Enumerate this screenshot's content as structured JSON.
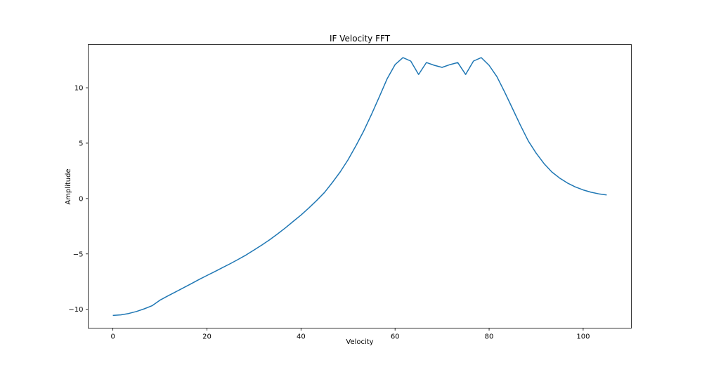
{
  "chart_data": {
    "type": "line",
    "title": "IF Velocity FFT",
    "xlabel": "Velocity",
    "ylabel": "Amplitude",
    "xlim": [
      -5.25,
      110.25
    ],
    "ylim": [
      -11.7,
      13.9
    ],
    "xticks": [
      0,
      20,
      40,
      60,
      80,
      100
    ],
    "xtick_labels": [
      "0",
      "20",
      "40",
      "60",
      "80",
      "100"
    ],
    "yticks": [
      -10,
      -5,
      0,
      5,
      10
    ],
    "ytick_labels": [
      "−10",
      "−5",
      "0",
      "5",
      "10"
    ],
    "grid": false,
    "line_color": "#1f77b4",
    "series": [
      {
        "x": [
          0,
          1.67,
          3.33,
          5,
          6.67,
          8.33,
          10,
          11.67,
          13.33,
          15,
          16.67,
          18.33,
          20,
          21.67,
          23.33,
          25,
          26.67,
          28.33,
          30,
          31.67,
          33.33,
          35,
          36.67,
          38.33,
          40,
          41.67,
          43.33,
          45,
          46.67,
          48.33,
          50,
          51.67,
          53.33,
          55,
          56.67,
          58.33,
          60,
          61.67,
          63.33,
          65,
          66.67,
          68.33,
          70,
          71.67,
          73.33,
          75,
          76.67,
          78.33,
          80,
          81.67,
          83.33,
          85,
          86.67,
          88.33,
          90,
          91.67,
          93.33,
          95,
          96.67,
          98.33,
          100,
          101.67,
          103.33,
          105
        ],
        "y": [
          -10.55,
          -10.5,
          -10.38,
          -10.2,
          -9.96,
          -9.68,
          -9.18,
          -8.8,
          -8.43,
          -8.06,
          -7.69,
          -7.31,
          -6.95,
          -6.59,
          -6.23,
          -5.87,
          -5.49,
          -5.1,
          -4.65,
          -4.2,
          -3.72,
          -3.2,
          -2.65,
          -2.07,
          -1.49,
          -0.85,
          -0.18,
          0.55,
          1.45,
          2.4,
          3.5,
          4.75,
          6.1,
          7.6,
          9.2,
          10.82,
          12.09,
          12.72,
          12.41,
          11.2,
          12.28,
          12.03,
          11.84,
          12.09,
          12.28,
          11.2,
          12.41,
          12.72,
          12.03,
          11.0,
          9.6,
          8.1,
          6.6,
          5.2,
          4.1,
          3.15,
          2.4,
          1.85,
          1.4,
          1.05,
          0.78,
          0.57,
          0.42,
          0.33
        ]
      }
    ]
  }
}
